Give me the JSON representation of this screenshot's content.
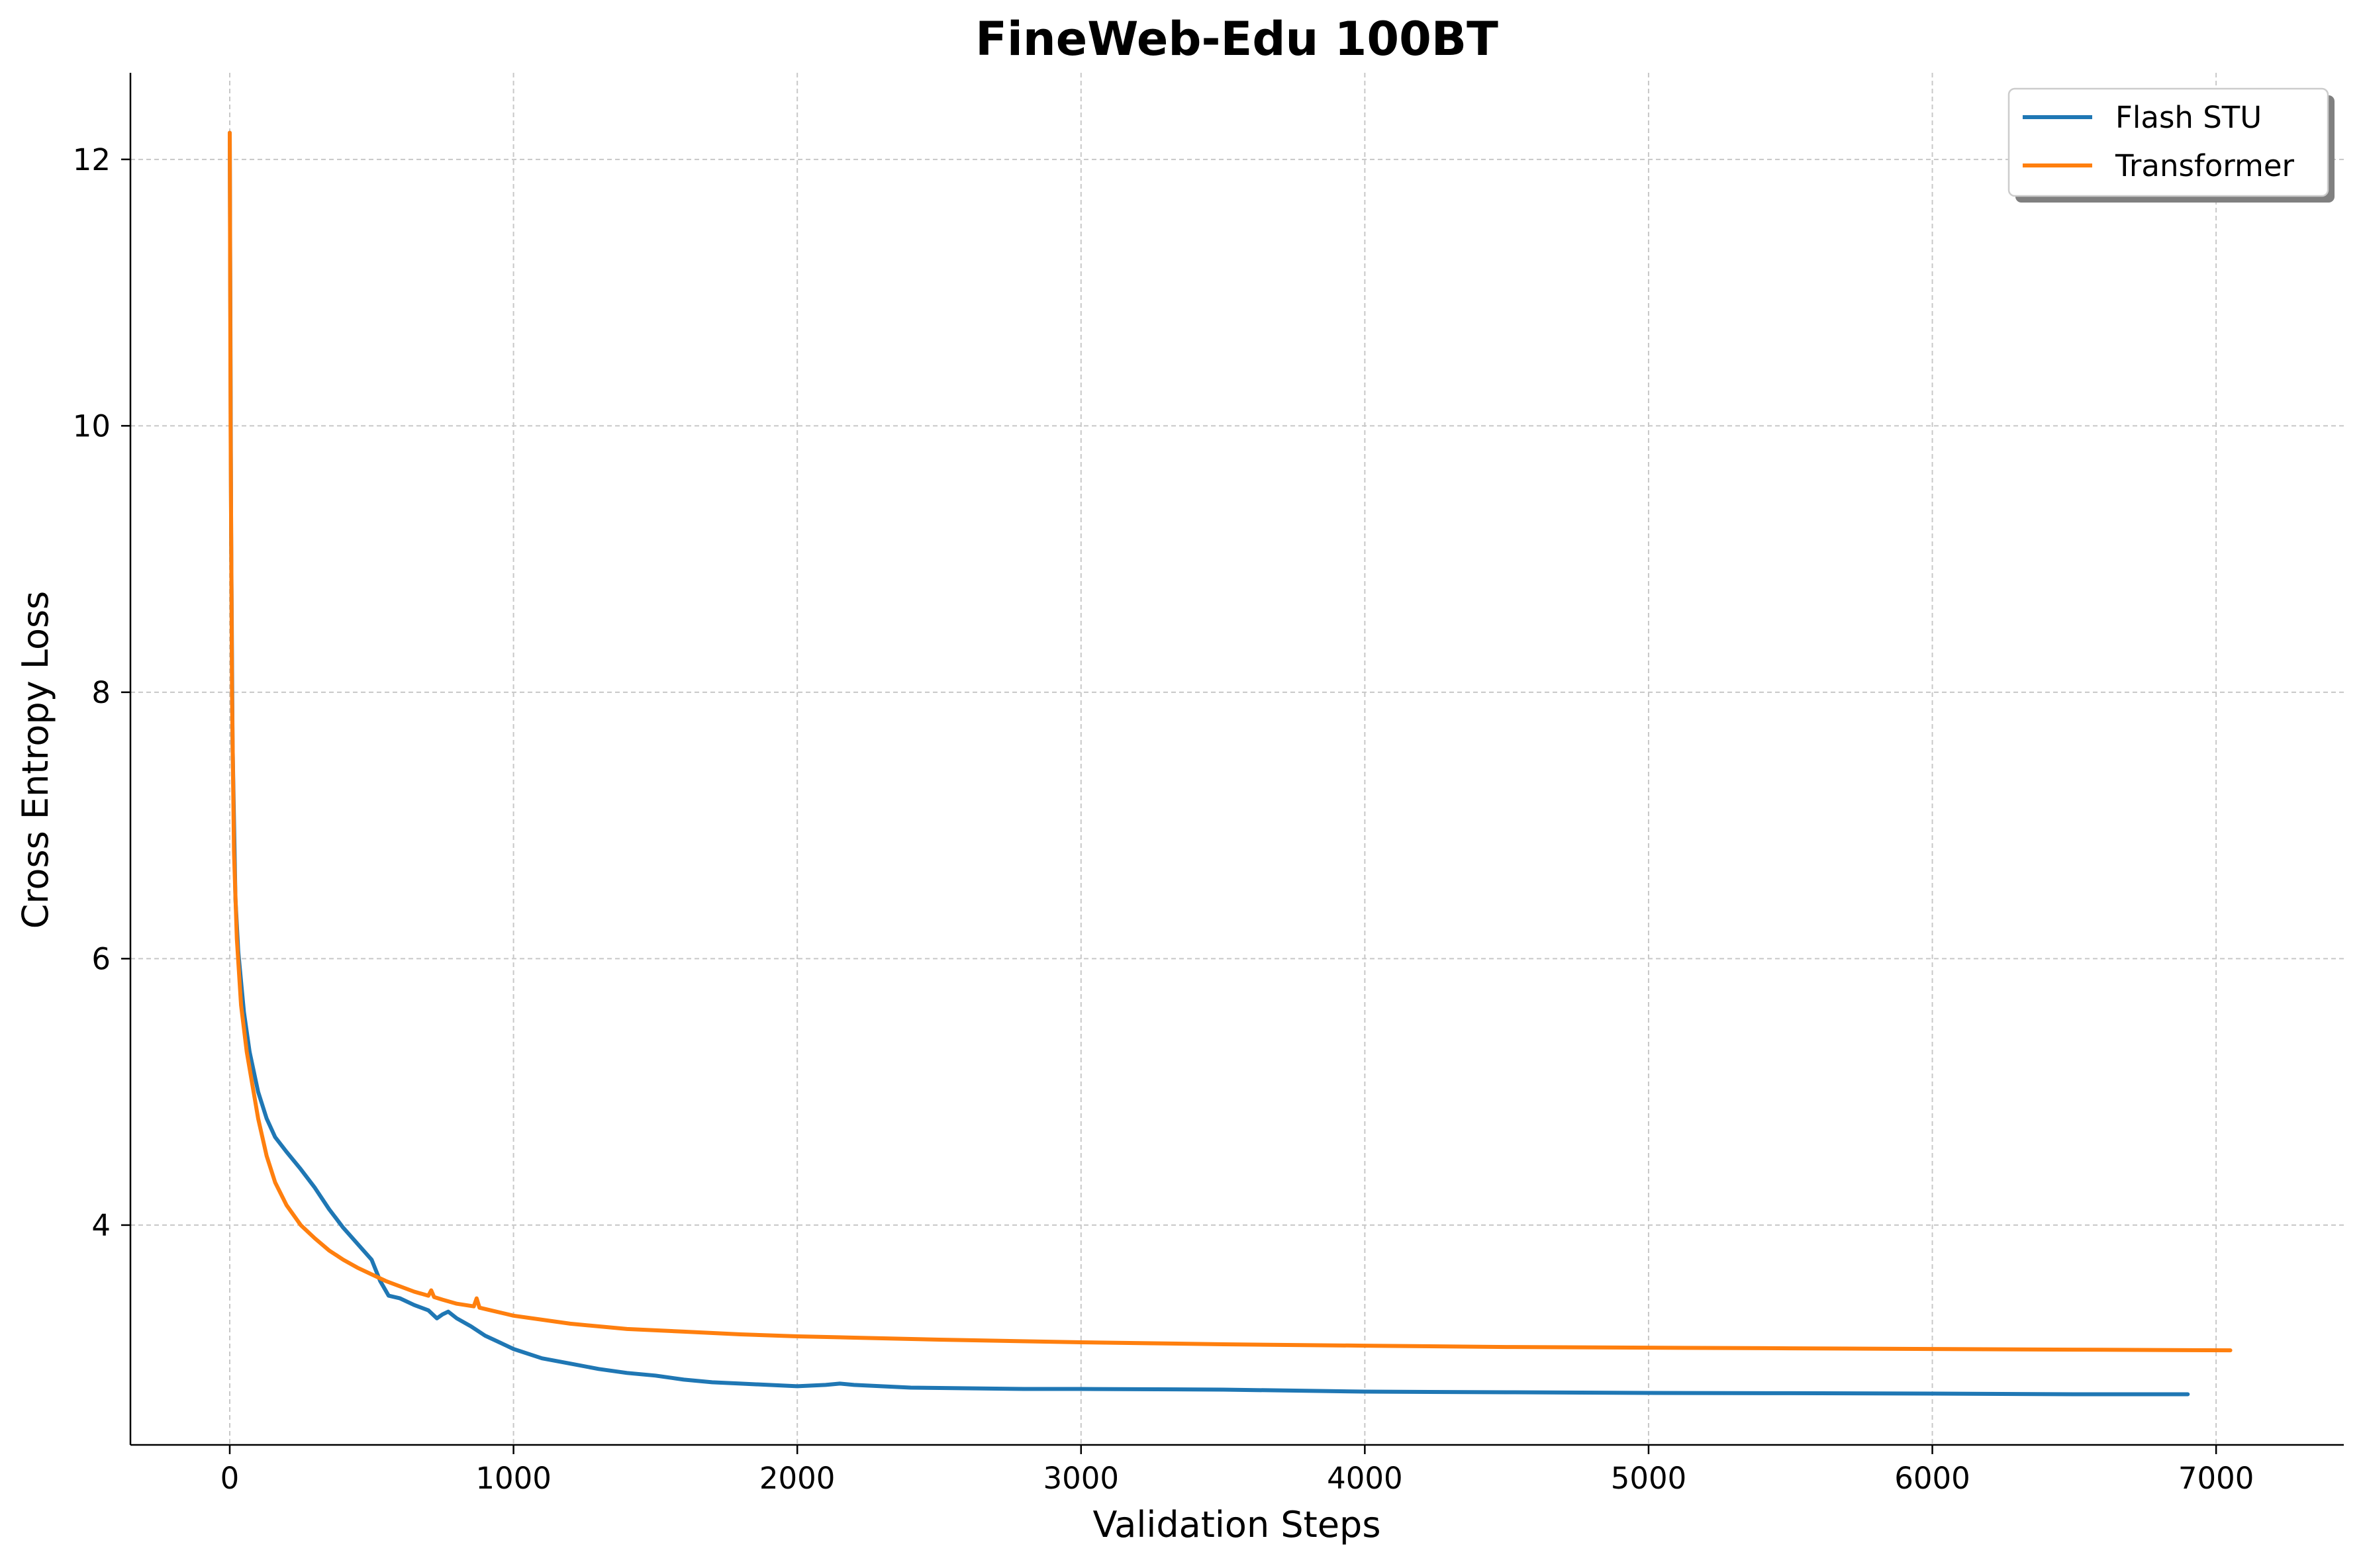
{
  "chart_data": {
    "type": "line",
    "title": "FineWeb-Edu 100BT",
    "xlabel": "Validation Steps",
    "ylabel": "Cross Entropy Loss",
    "xlim": [
      -350,
      7450
    ],
    "ylim": [
      2.35,
      12.65
    ],
    "xticks": [
      0,
      1000,
      2000,
      3000,
      4000,
      5000,
      6000,
      7000
    ],
    "xtick_labels": [
      "0",
      "1000",
      "2000",
      "3000",
      "4000",
      "5000",
      "6000",
      "7000"
    ],
    "yticks": [
      4,
      6,
      8,
      10,
      12
    ],
    "ytick_labels": [
      "4",
      "6",
      "8",
      "10",
      "12"
    ],
    "grid": true,
    "legend_position": "top-right",
    "series": [
      {
        "name": "Flash STU",
        "color": "#1f77b4",
        "x": [
          0,
          5,
          10,
          20,
          30,
          50,
          70,
          100,
          130,
          160,
          200,
          250,
          300,
          350,
          400,
          450,
          500,
          530,
          560,
          600,
          650,
          700,
          730,
          750,
          770,
          800,
          850,
          900,
          950,
          1000,
          1100,
          1200,
          1300,
          1400,
          1500,
          1600,
          1700,
          1800,
          1900,
          2000,
          2100,
          2150,
          2200,
          2400,
          2600,
          2800,
          3000,
          3500,
          4000,
          4500,
          5000,
          5500,
          6000,
          6500,
          6900
        ],
        "y": [
          12.2,
          9.2,
          7.6,
          6.45,
          6.05,
          5.6,
          5.3,
          5.0,
          4.8,
          4.66,
          4.55,
          4.42,
          4.28,
          4.12,
          3.98,
          3.86,
          3.74,
          3.58,
          3.47,
          3.45,
          3.4,
          3.36,
          3.3,
          3.33,
          3.35,
          3.3,
          3.24,
          3.17,
          3.12,
          3.07,
          3.0,
          2.96,
          2.92,
          2.89,
          2.87,
          2.84,
          2.82,
          2.81,
          2.8,
          2.79,
          2.8,
          2.81,
          2.8,
          2.78,
          2.775,
          2.77,
          2.77,
          2.765,
          2.75,
          2.745,
          2.74,
          2.738,
          2.735,
          2.73,
          2.73
        ]
      },
      {
        "name": "Transformer",
        "color": "#ff7f0e",
        "x": [
          0,
          3,
          8,
          15,
          25,
          40,
          60,
          80,
          100,
          130,
          160,
          200,
          250,
          300,
          350,
          400,
          450,
          500,
          550,
          600,
          650,
          700,
          710,
          720,
          750,
          800,
          860,
          870,
          880,
          900,
          1000,
          1200,
          1400,
          1600,
          1800,
          2000,
          2200,
          2500,
          3000,
          3500,
          4000,
          4500,
          5000,
          5500,
          6000,
          6500,
          7050
        ],
        "y": [
          12.2,
          10.0,
          8.0,
          6.8,
          6.15,
          5.65,
          5.3,
          5.05,
          4.8,
          4.52,
          4.32,
          4.15,
          4.0,
          3.9,
          3.81,
          3.74,
          3.68,
          3.63,
          3.58,
          3.54,
          3.5,
          3.47,
          3.51,
          3.46,
          3.44,
          3.41,
          3.39,
          3.45,
          3.38,
          3.37,
          3.32,
          3.26,
          3.22,
          3.2,
          3.18,
          3.165,
          3.155,
          3.14,
          3.12,
          3.105,
          3.095,
          3.085,
          3.08,
          3.075,
          3.07,
          3.065,
          3.06
        ]
      }
    ]
  }
}
